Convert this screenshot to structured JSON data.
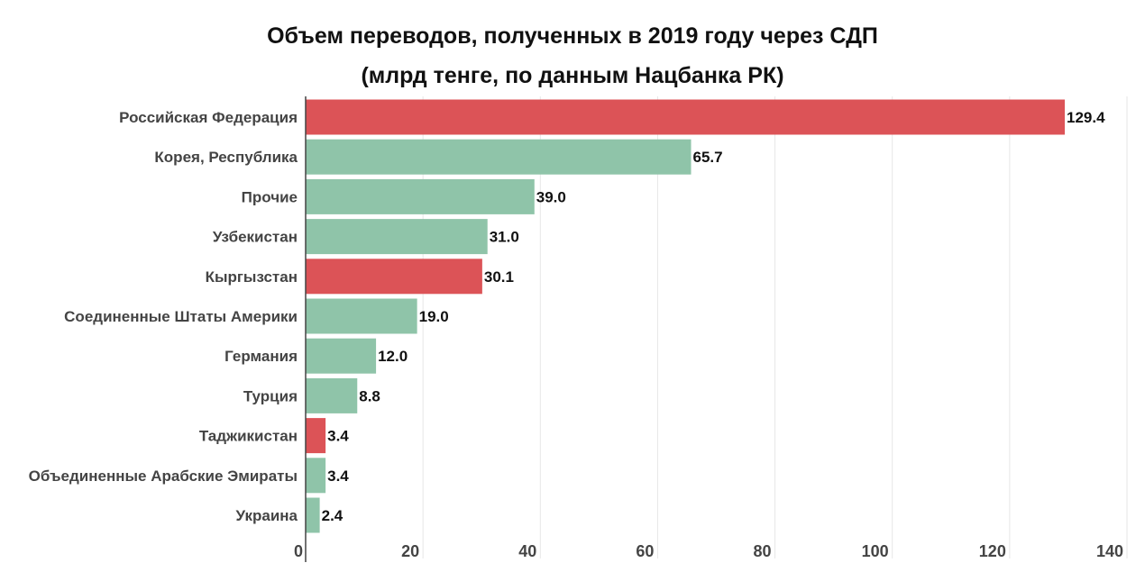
{
  "chart_data": {
    "type": "bar",
    "orientation": "horizontal",
    "title": "Объем переводов, полученных в 2019 году через СДП",
    "subtitle": "(млрд тенге, по данным Нацбанка РК)",
    "categories": [
      "Российская Федерация",
      "Корея, Республика",
      "Прочие",
      "Узбекистан",
      "Кыргызстан",
      "Соединенные Штаты Америки",
      "Германия",
      "Турция",
      "Таджикистан",
      "Объединенные Арабские Эмираты",
      "Украина"
    ],
    "values": [
      129.4,
      65.7,
      39.0,
      31.0,
      30.1,
      19.0,
      12.0,
      8.8,
      3.4,
      3.4,
      2.4
    ],
    "value_labels": [
      "129.4",
      "65.7",
      "39.0",
      "31.0",
      "30.1",
      "19.0",
      "12.0",
      "8.8",
      "3.4",
      "3.4",
      "2.4"
    ],
    "highlight": [
      true,
      false,
      false,
      false,
      true,
      false,
      false,
      false,
      true,
      false,
      false
    ],
    "xlim": [
      0,
      140
    ],
    "xticks": [
      0,
      20,
      40,
      60,
      80,
      100,
      120,
      140
    ],
    "grid": true,
    "colors": {
      "highlight": "#dc5357",
      "default": "#8fc4a9",
      "grid": "#e6e6e6",
      "axis": "#444444"
    }
  }
}
